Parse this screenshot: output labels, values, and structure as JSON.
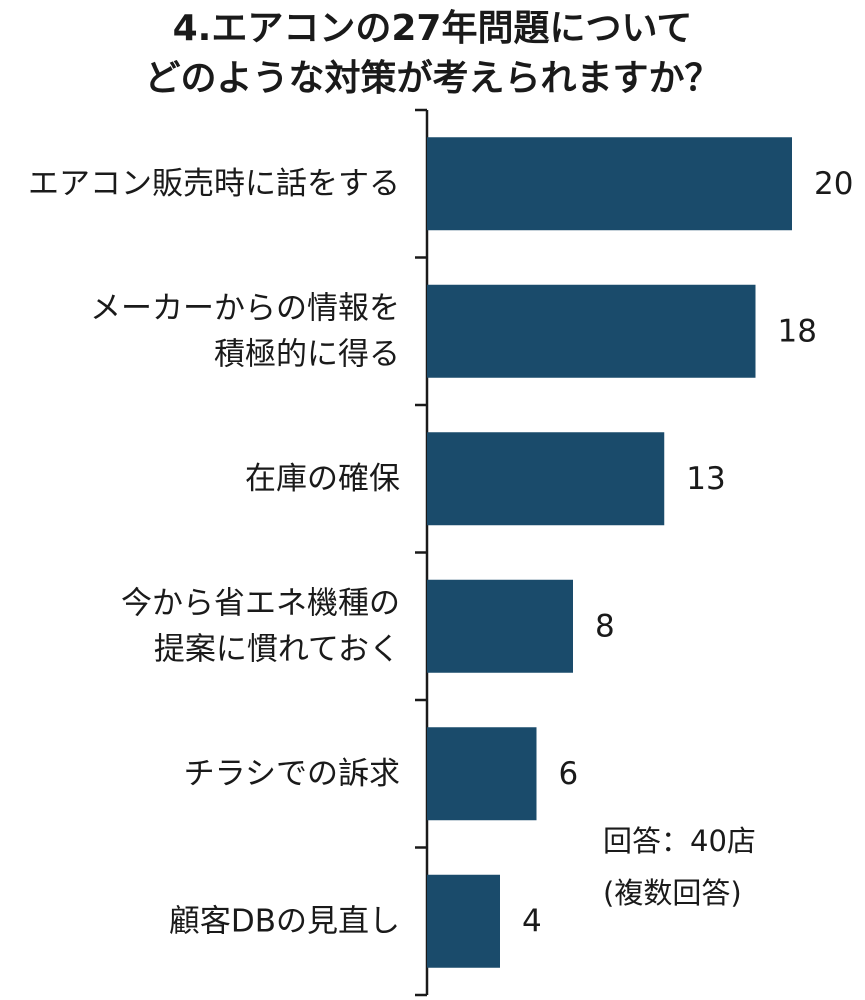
{
  "title_lines": [
    "4.エアコンの27年問題について",
    "どのような対策が考えられますか？"
  ],
  "note_lines": [
    "回答：40店",
    "(複数回答)"
  ],
  "bar_color": "#1a4b6b",
  "chart_data": {
    "type": "bar",
    "orientation": "horizontal",
    "title": "4.エアコンの27年問題について どのような対策が考えられますか？",
    "categories": [
      [
        "エアコン販売時に話をする"
      ],
      [
        "メーカーからの情報を",
        "積極的に得る"
      ],
      [
        "在庫の確保"
      ],
      [
        "今から省エネ機種の",
        "提案に慣れておく"
      ],
      [
        "チラシでの訴求"
      ],
      [
        "顧客DBの見直し"
      ]
    ],
    "values": [
      20,
      18,
      13,
      8,
      6,
      4
    ],
    "xlim": [
      0,
      20
    ],
    "grid": false,
    "legend": "none"
  }
}
